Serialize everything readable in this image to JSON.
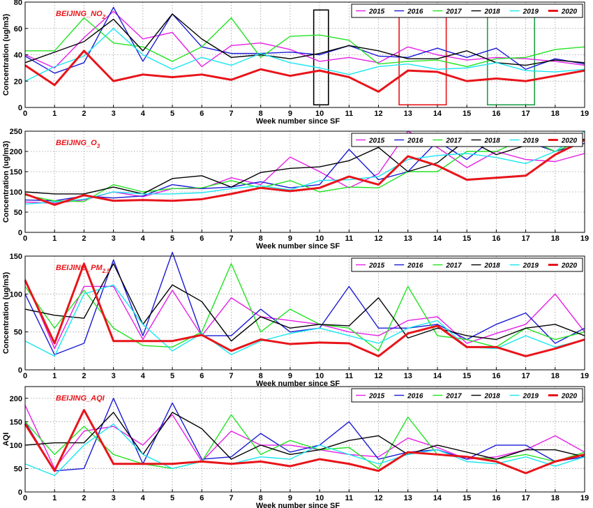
{
  "chart_data": [
    {
      "type": "line",
      "title_main": "BEIJING_NO",
      "title_sub": "2",
      "xlabel": "Week number since SF",
      "ylabel": "Concentration (ug/m3)",
      "xlim": [
        0,
        19
      ],
      "ylim": [
        0,
        80
      ],
      "xticks": [
        0,
        1,
        2,
        3,
        4,
        5,
        6,
        7,
        8,
        9,
        10,
        11,
        12,
        13,
        14,
        15,
        16,
        17,
        18,
        19
      ],
      "yticks": [
        0,
        20,
        40,
        60,
        80
      ],
      "grid": true,
      "legend_position": "top-right",
      "highlight_boxes": [
        {
          "x_from": 9.8,
          "x_to": 10.3,
          "y_from": 2,
          "y_to": 74,
          "color": "#000000"
        },
        {
          "x_from": 12.7,
          "x_to": 14.3,
          "y_from": 2,
          "y_to": 74,
          "color": "#e8141a"
        },
        {
          "x_from": 15.7,
          "x_to": 17.3,
          "y_from": 2,
          "y_to": 74,
          "color": "#1e9e4a"
        }
      ],
      "series": [
        {
          "name": "2015",
          "color": "#e61fe6",
          "width": 1.4,
          "values": [
            40,
            30,
            53,
            73,
            52,
            57,
            31,
            47,
            49,
            44,
            35,
            38,
            34,
            46,
            40,
            36,
            38,
            37,
            35,
            32
          ]
        },
        {
          "name": "2016",
          "color": "#1a1ad6",
          "width": 1.4,
          "values": [
            39,
            26,
            34,
            76,
            35,
            71,
            46,
            41,
            41,
            42,
            40,
            47,
            39,
            38,
            45,
            38,
            45,
            29,
            37,
            33
          ]
        },
        {
          "name": "2017",
          "color": "#22e322",
          "width": 1.4,
          "values": [
            43,
            43,
            68,
            49,
            46,
            35,
            46,
            68,
            38,
            54,
            55,
            51,
            33,
            35,
            36,
            31,
            37,
            38,
            44,
            46
          ]
        },
        {
          "name": "2018",
          "color": "#000000",
          "width": 1.4,
          "values": [
            34,
            42,
            50,
            67,
            43,
            71,
            52,
            38,
            40,
            37,
            41,
            47,
            43,
            37,
            37,
            43,
            34,
            32,
            36,
            34
          ]
        },
        {
          "name": "2019",
          "color": "#18e6f0",
          "width": 1.4,
          "values": [
            20,
            31,
            39,
            60,
            40,
            29,
            38,
            32,
            41,
            34,
            30,
            25,
            31,
            33,
            29,
            30,
            34,
            28,
            27,
            29
          ]
        },
        {
          "name": "2020",
          "color": "#e8141a",
          "width": 3,
          "values": [
            32,
            17,
            43,
            20,
            25,
            23,
            25,
            21,
            29,
            24,
            28,
            23,
            12,
            28,
            27,
            20,
            22,
            20,
            24,
            28
          ]
        }
      ]
    },
    {
      "type": "line",
      "title_main": "BEIJING_O",
      "title_sub": "3",
      "xlabel": "Week number since SF",
      "ylabel": "Concentration (ug/m3)",
      "xlim": [
        0,
        19
      ],
      "ylim": [
        0,
        250
      ],
      "xticks": [
        0,
        1,
        2,
        3,
        4,
        5,
        6,
        7,
        8,
        9,
        10,
        11,
        12,
        13,
        14,
        15,
        16,
        17,
        18,
        19
      ],
      "yticks": [
        0,
        50,
        100,
        150,
        200,
        250
      ],
      "grid": true,
      "legend_position": "top-right",
      "series": [
        {
          "name": "2015",
          "color": "#e61fe6",
          "width": 1.4,
          "values": [
            75,
            72,
            80,
            100,
            88,
            108,
            108,
            135,
            118,
            186,
            150,
            110,
            145,
            250,
            210,
            160,
            200,
            180,
            175,
            195
          ]
        },
        {
          "name": "2016",
          "color": "#1a1ad6",
          "width": 1.4,
          "values": [
            80,
            78,
            90,
            85,
            90,
            118,
            108,
            112,
            125,
            110,
            118,
            205,
            130,
            150,
            225,
            180,
            237,
            225,
            200,
            220
          ]
        },
        {
          "name": "2017",
          "color": "#22e322",
          "width": 1.4,
          "values": [
            92,
            78,
            76,
            118,
            100,
            108,
            110,
            128,
            110,
            128,
            100,
            112,
            110,
            150,
            150,
            200,
            200,
            232,
            200,
            230
          ]
        },
        {
          "name": "2018",
          "color": "#000000",
          "width": 1.4,
          "values": [
            100,
            95,
            95,
            112,
            95,
            133,
            140,
            112,
            148,
            158,
            162,
            177,
            210,
            150,
            172,
            230,
            192,
            215,
            228,
            230
          ]
        },
        {
          "name": "2019",
          "color": "#18e6f0",
          "width": 1.4,
          "values": [
            70,
            75,
            82,
            100,
            95,
            95,
            98,
            108,
            115,
            105,
            128,
            130,
            138,
            180,
            190,
            195,
            185,
            170,
            200,
            250
          ]
        },
        {
          "name": "2020",
          "color": "#e8141a",
          "width": 3,
          "values": [
            95,
            68,
            92,
            78,
            80,
            78,
            82,
            95,
            110,
            102,
            110,
            138,
            118,
            188,
            165,
            130,
            135,
            140,
            192,
            228
          ]
        }
      ]
    },
    {
      "type": "line",
      "title_main": "BEIJING_PM",
      "title_sub": "2.5",
      "xlabel": "Week number since SF",
      "ylabel": "Concentration (ug/m3)",
      "xlim": [
        0,
        19
      ],
      "ylim": [
        0,
        150
      ],
      "xticks": [
        0,
        1,
        2,
        3,
        4,
        5,
        6,
        7,
        8,
        9,
        10,
        11,
        12,
        13,
        14,
        15,
        16,
        17,
        18,
        19
      ],
      "yticks": [
        0,
        50,
        100,
        150
      ],
      "grid": true,
      "legend_position": "top-right",
      "series": [
        {
          "name": "2015",
          "color": "#e61fe6",
          "width": 1.4,
          "values": [
            120,
            28,
            110,
            110,
            40,
            105,
            45,
            95,
            70,
            65,
            60,
            50,
            45,
            65,
            70,
            35,
            48,
            60,
            100,
            50
          ]
        },
        {
          "name": "2016",
          "color": "#1a1ad6",
          "width": 1.4,
          "values": [
            100,
            20,
            35,
            145,
            45,
            155,
            45,
            45,
            80,
            50,
            55,
            110,
            55,
            55,
            60,
            40,
            60,
            75,
            35,
            55
          ]
        },
        {
          "name": "2017",
          "color": "#22e322",
          "width": 1.4,
          "values": [
            110,
            55,
            105,
            55,
            32,
            30,
            50,
            140,
            50,
            80,
            60,
            55,
            25,
            110,
            45,
            40,
            30,
            55,
            40,
            50
          ]
        },
        {
          "name": "2018",
          "color": "#000000",
          "width": 1.4,
          "values": [
            80,
            72,
            68,
            140,
            60,
            112,
            90,
            38,
            70,
            55,
            60,
            58,
            95,
            42,
            55,
            45,
            40,
            55,
            60,
            45
          ]
        },
        {
          "name": "2019",
          "color": "#18e6f0",
          "width": 1.4,
          "values": [
            38,
            18,
            100,
            112,
            60,
            25,
            48,
            20,
            38,
            48,
            55,
            45,
            35,
            55,
            65,
            30,
            28,
            45,
            30,
            40
          ]
        },
        {
          "name": "2020",
          "color": "#e8141a",
          "width": 3,
          "values": [
            118,
            35,
            140,
            38,
            38,
            38,
            46,
            25,
            40,
            34,
            36,
            35,
            18,
            48,
            58,
            30,
            30,
            18,
            28,
            40
          ]
        }
      ]
    },
    {
      "type": "line",
      "title_main": "BEIJING_AQI",
      "title_sub": "",
      "xlabel": "Week number since SF",
      "ylabel": "AQI",
      "xlim": [
        0,
        19
      ],
      "ylim": [
        0,
        225
      ],
      "xticks": [
        0,
        1,
        2,
        3,
        4,
        5,
        6,
        7,
        8,
        9,
        10,
        11,
        12,
        13,
        14,
        15,
        16,
        17,
        18,
        19
      ],
      "yticks": [
        0,
        50,
        100,
        150,
        200
      ],
      "grid": true,
      "legend_position": "top-right",
      "series": [
        {
          "name": "2015",
          "color": "#e61fe6",
          "width": 1.4,
          "values": [
            185,
            50,
            130,
            140,
            100,
            165,
            65,
            130,
            100,
            100,
            90,
            80,
            75,
            115,
            95,
            70,
            75,
            90,
            120,
            85
          ]
        },
        {
          "name": "2016",
          "color": "#1a1ad6",
          "width": 1.4,
          "values": [
            150,
            45,
            50,
            200,
            60,
            190,
            70,
            75,
            125,
            85,
            100,
            150,
            70,
            85,
            90,
            70,
            100,
            100,
            65,
            75
          ]
        },
        {
          "name": "2017",
          "color": "#22e322",
          "width": 1.4,
          "values": [
            150,
            80,
            140,
            80,
            60,
            50,
            65,
            165,
            80,
            110,
            90,
            95,
            50,
            160,
            80,
            75,
            70,
            80,
            65,
            85
          ]
        },
        {
          "name": "2018",
          "color": "#000000",
          "width": 1.4,
          "values": [
            100,
            105,
            105,
            170,
            80,
            170,
            135,
            70,
            100,
            80,
            90,
            110,
            120,
            80,
            100,
            85,
            70,
            90,
            90,
            75
          ]
        },
        {
          "name": "2019",
          "color": "#18e6f0",
          "width": 1.4,
          "values": [
            60,
            35,
            100,
            145,
            80,
            50,
            65,
            60,
            75,
            70,
            100,
            80,
            60,
            80,
            90,
            65,
            60,
            75,
            55,
            75
          ]
        },
        {
          "name": "2020",
          "color": "#e8141a",
          "width": 3,
          "values": [
            145,
            45,
            175,
            60,
            60,
            60,
            65,
            60,
            65,
            55,
            70,
            60,
            45,
            85,
            80,
            75,
            65,
            40,
            65,
            80
          ]
        }
      ]
    }
  ]
}
